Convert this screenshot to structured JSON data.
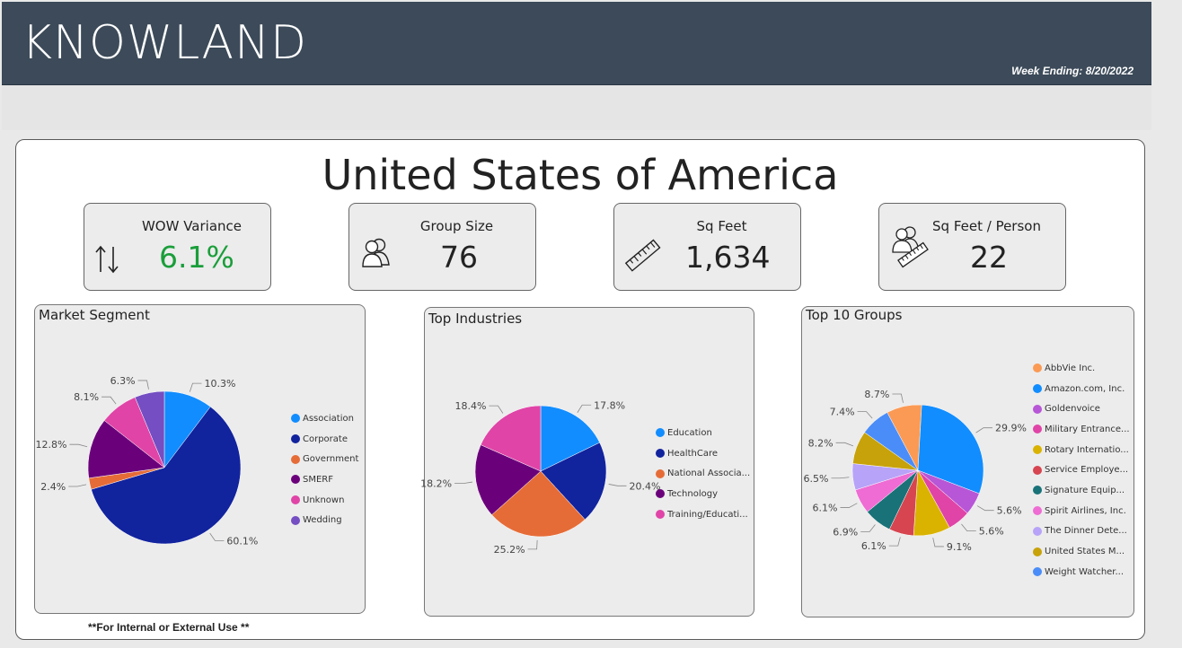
{
  "header": {
    "brand": "KNOWLAND",
    "week_ending": "Week Ending: 8/20/2022"
  },
  "main": {
    "title": "United States of America",
    "footer": "**For Internal or External Use **"
  },
  "kpis": [
    {
      "label": "WOW Variance",
      "value": "6.1%",
      "icon": "up-down-arrows-icon",
      "value_color": "#1a9e3a"
    },
    {
      "label": "Group Size",
      "value": "76",
      "icon": "people-icon",
      "value_color": "#222222"
    },
    {
      "label": "Sq Feet",
      "value": "1,634",
      "icon": "ruler-icon",
      "value_color": "#222222"
    },
    {
      "label": "Sq Feet / Person",
      "value": "22",
      "icon": "people-ruler-icon",
      "value_color": "#222222"
    }
  ],
  "chart_data": [
    {
      "type": "pie",
      "title": "Market Segment",
      "categories": [
        "Association",
        "Corporate",
        "Government",
        "SMERF",
        "Unknown",
        "Wedding"
      ],
      "values": [
        10.3,
        60.1,
        2.4,
        12.8,
        8.1,
        6.3
      ],
      "labels": [
        "10.3%",
        "60.1%",
        "2.4%",
        "12.8%",
        "8.1%",
        "6.3%"
      ],
      "colors": [
        "#118dff",
        "#12239e",
        "#e66c37",
        "#6b007b",
        "#e044a7",
        "#744ec2"
      ],
      "legend": "right"
    },
    {
      "type": "pie",
      "title": "Top Industries",
      "categories": [
        "Education",
        "HealthCare",
        "National Associa...",
        "Technology",
        "Training/Educati..."
      ],
      "values": [
        17.8,
        20.4,
        25.2,
        18.2,
        18.4
      ],
      "labels": [
        "17.8%",
        "20.4%",
        "25.2%",
        "18.2%",
        "18.4%"
      ],
      "colors": [
        "#118dff",
        "#12239e",
        "#e66c37",
        "#6b007b",
        "#e044a7"
      ],
      "legend": "right"
    },
    {
      "type": "pie",
      "title": "Top 10 Groups",
      "categories": [
        "AbbVie Inc.",
        "Amazon.com, Inc.",
        "Goldenvoice",
        "Military Entrance...",
        "Rotary Internatio...",
        "Service Employe...",
        "Signature Equip...",
        "Spirit Airlines, Inc.",
        "The Dinner Dete...",
        "United States M...",
        "Weight Watcher..."
      ],
      "slices": [
        {
          "name": "AbbVie Inc.",
          "value": 8.7,
          "label": "8.7%"
        },
        {
          "name": "Amazon.com, Inc.",
          "value": 29.9,
          "label": "29.9%"
        },
        {
          "name": "Goldenvoice",
          "value": 5.6,
          "label": "5.6%"
        },
        {
          "name": "Military Entrance...",
          "value": 5.6,
          "label": "5.6%"
        },
        {
          "name": "Rotary Internatio...",
          "value": 9.1,
          "label": "9.1%"
        },
        {
          "name": "Service Employe...",
          "value": 6.1,
          "label": "6.1%"
        },
        {
          "name": "Signature Equip...",
          "value": 6.9,
          "label": "6.9%"
        },
        {
          "name": "Spirit Airlines, Inc.",
          "value": 6.1,
          "label": "6.1%"
        },
        {
          "name": "The Dinner Dete...",
          "value": 6.5,
          "label": "6.5%"
        },
        {
          "name": "United States M...",
          "value": 8.2,
          "label": "8.2%"
        },
        {
          "name": "Weight Watcher...",
          "value": 7.4,
          "label": "7.4%"
        }
      ],
      "colors": [
        "#fa9a55",
        "#118dff",
        "#b756d6",
        "#e044a7",
        "#d9b300",
        "#d64550",
        "#197278",
        "#ee6cd3",
        "#b7a3f7",
        "#c7a20a",
        "#4b8df8"
      ],
      "legend": "right"
    }
  ]
}
